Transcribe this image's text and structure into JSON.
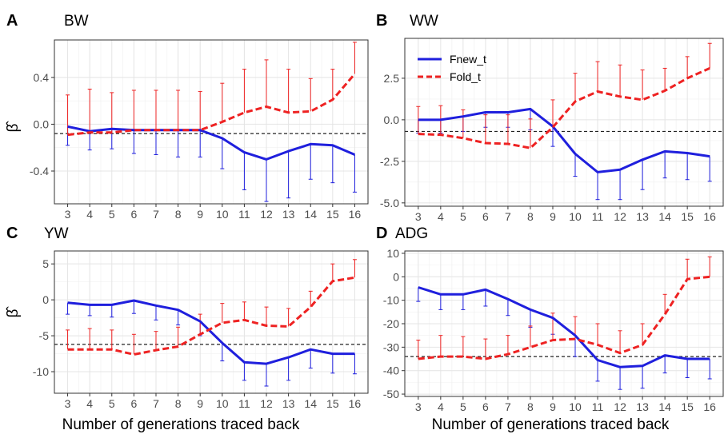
{
  "figure": {
    "xlabel": "Number of generations traced back",
    "ylabel": "β̂"
  },
  "legend": {
    "entries": [
      {
        "name": "Fnew_t",
        "color": "#1f1fdd",
        "dash": "solid"
      },
      {
        "name": "Fold_t",
        "color": "#ee2222",
        "dash": "dashed"
      }
    ],
    "position": "top-left of panel B"
  },
  "chart_data": [
    {
      "panel": "A",
      "title": "BW",
      "type": "line",
      "x": [
        3,
        4,
        5,
        6,
        7,
        8,
        9,
        10,
        11,
        12,
        13,
        14,
        15,
        16
      ],
      "ylim": [
        -0.68,
        0.72
      ],
      "yticks": [
        -0.4,
        0.0,
        0.4
      ],
      "ytick_labels": [
        "-0.4",
        "0.0",
        "0.4"
      ],
      "baseline": -0.08,
      "grid": true,
      "series": [
        {
          "name": "Fnew_t",
          "color": "#1f1fdd",
          "dash": "solid",
          "values": [
            -0.02,
            -0.06,
            -0.04,
            -0.05,
            -0.05,
            -0.05,
            -0.05,
            -0.12,
            -0.24,
            -0.3,
            -0.23,
            -0.17,
            -0.18,
            -0.26
          ],
          "error_bars": [
            -0.18,
            -0.22,
            -0.21,
            -0.25,
            -0.26,
            -0.28,
            -0.28,
            -0.38,
            -0.56,
            -0.66,
            -0.63,
            -0.47,
            -0.5,
            -0.58
          ]
        },
        {
          "name": "Fold_t",
          "color": "#ee2222",
          "dash": "dashed",
          "values": [
            -0.09,
            -0.07,
            -0.07,
            -0.05,
            -0.05,
            -0.05,
            -0.05,
            0.02,
            0.1,
            0.15,
            0.1,
            0.11,
            0.21,
            0.43
          ],
          "error_bars": [
            0.25,
            0.3,
            0.27,
            0.29,
            0.29,
            0.29,
            0.28,
            0.35,
            0.47,
            0.55,
            0.47,
            0.39,
            0.47,
            0.7
          ]
        }
      ]
    },
    {
      "panel": "B",
      "title": "WW",
      "type": "line",
      "x": [
        3,
        4,
        5,
        6,
        7,
        8,
        9,
        10,
        11,
        12,
        13,
        14,
        15,
        16
      ],
      "ylim": [
        -5.2,
        4.9
      ],
      "yticks": [
        -5.0,
        -2.5,
        0.0,
        2.5
      ],
      "ytick_labels": [
        "-5.0",
        "-2.5",
        "0.0",
        "2.5"
      ],
      "baseline": -0.7,
      "grid": true,
      "series": [
        {
          "name": "Fnew_t",
          "color": "#1f1fdd",
          "dash": "solid",
          "values": [
            0.0,
            0.0,
            0.2,
            0.45,
            0.45,
            0.65,
            -0.4,
            -2.05,
            -3.15,
            -3.0,
            -2.4,
            -1.9,
            -2.0,
            -2.2
          ],
          "error_bars": [
            -0.8,
            -0.8,
            -0.7,
            -0.45,
            -0.45,
            -0.6,
            -1.6,
            -3.4,
            -4.8,
            -4.8,
            -4.2,
            -3.5,
            -3.6,
            -3.7
          ]
        },
        {
          "name": "Fold_t",
          "color": "#ee2222",
          "dash": "dashed",
          "values": [
            -0.85,
            -0.9,
            -1.1,
            -1.4,
            -1.45,
            -1.7,
            -0.45,
            1.1,
            1.7,
            1.4,
            1.2,
            1.75,
            2.5,
            3.1
          ],
          "error_bars": [
            0.8,
            0.85,
            0.6,
            0.3,
            0.3,
            0.05,
            1.2,
            2.8,
            3.5,
            3.3,
            3.0,
            3.1,
            3.8,
            4.6
          ]
        }
      ]
    },
    {
      "panel": "C",
      "title": "YW",
      "type": "line",
      "x": [
        3,
        4,
        5,
        6,
        7,
        8,
        9,
        10,
        11,
        12,
        13,
        14,
        15,
        16
      ],
      "ylim": [
        -13,
        6.8
      ],
      "yticks": [
        -10,
        -5,
        0,
        5
      ],
      "ytick_labels": [
        "-10",
        "-5",
        "0",
        "5"
      ],
      "baseline": -6.2,
      "grid": true,
      "series": [
        {
          "name": "Fnew_t",
          "color": "#1f1fdd",
          "dash": "solid",
          "values": [
            -0.4,
            -0.7,
            -0.7,
            -0.1,
            -0.8,
            -1.4,
            -3.0,
            -6.0,
            -8.7,
            -8.9,
            -8.0,
            -6.9,
            -7.5,
            -7.5
          ],
          "error_bars": [
            -2.0,
            -2.2,
            -2.4,
            -1.9,
            -2.8,
            -3.5,
            -5.0,
            -8.5,
            -11.2,
            -12.0,
            -11.2,
            -9.5,
            -10.2,
            -10.3
          ]
        },
        {
          "name": "Fold_t",
          "color": "#ee2222",
          "dash": "dashed",
          "values": [
            -6.9,
            -6.9,
            -6.9,
            -7.6,
            -7.0,
            -6.5,
            -4.8,
            -3.2,
            -2.8,
            -3.6,
            -3.7,
            -1.0,
            2.6,
            3.1
          ],
          "error_bars": [
            -4.2,
            -4.0,
            -4.2,
            -4.8,
            -4.4,
            -3.8,
            -2.0,
            -0.5,
            -0.3,
            -1.0,
            -1.2,
            1.2,
            5.0,
            5.6
          ]
        }
      ]
    },
    {
      "panel": "D",
      "title": "ADG",
      "type": "line",
      "x": [
        3,
        4,
        5,
        6,
        7,
        8,
        9,
        10,
        11,
        12,
        13,
        14,
        15,
        16
      ],
      "ylim": [
        -51,
        11
      ],
      "yticks": [
        -50,
        -40,
        -30,
        -20,
        -10,
        0,
        10
      ],
      "ytick_labels": [
        "-50",
        "-40",
        "-30",
        "-20",
        "-10",
        "0",
        "10"
      ],
      "baseline": -34,
      "grid": true,
      "series": [
        {
          "name": "Fnew_t",
          "color": "#1f1fdd",
          "dash": "solid",
          "values": [
            -4.5,
            -7.5,
            -7.5,
            -5.5,
            -9.5,
            -14,
            -17.5,
            -25,
            -35.5,
            -38.5,
            -38,
            -33.5,
            -35,
            -35
          ],
          "error_bars": [
            -10.5,
            -14,
            -14,
            -12.5,
            -16.5,
            -21.5,
            -24.5,
            -34,
            -44.5,
            -48,
            -47.5,
            -41,
            -43,
            -43.5
          ]
        },
        {
          "name": "Fold_t",
          "color": "#ee2222",
          "dash": "dashed",
          "values": [
            -35,
            -34,
            -34,
            -35,
            -33,
            -30,
            -27,
            -26.5,
            -29,
            -32.5,
            -29,
            -16,
            -1,
            0
          ],
          "error_bars": [
            -27,
            -25,
            -25.5,
            -26.5,
            -25,
            -21,
            -15.5,
            -17,
            -20,
            -23,
            -20,
            -7.5,
            7.5,
            8.5
          ]
        }
      ]
    }
  ]
}
